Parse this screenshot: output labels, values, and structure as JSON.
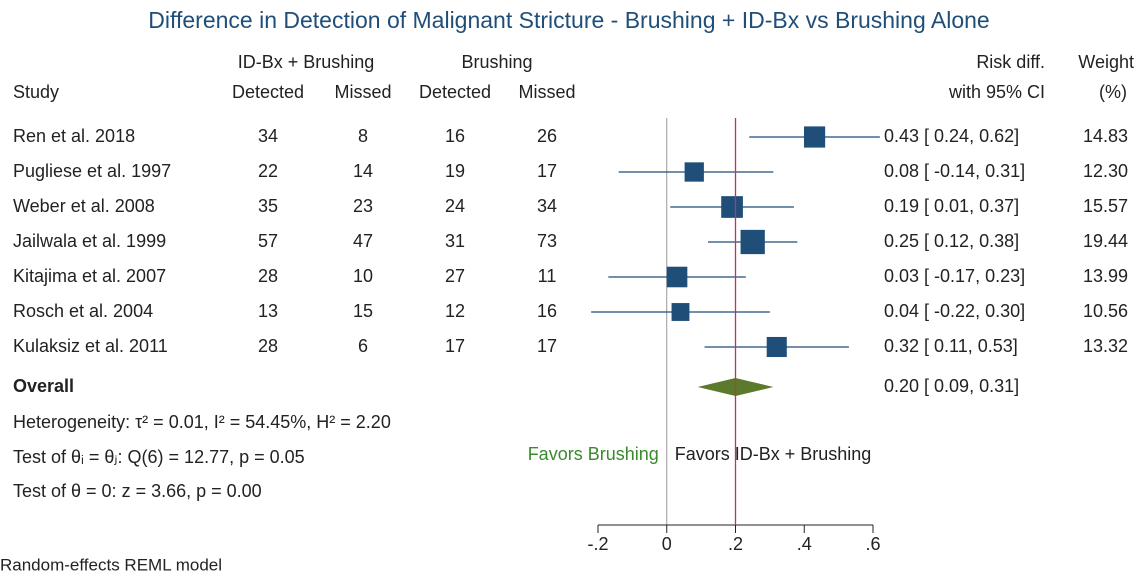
{
  "chart_data": {
    "type": "forest",
    "title": "Difference in Detection of Malignant Stricture - Brushing + ID-Bx vs Brushing Alone",
    "group_headers": [
      "ID-Bx + Brushing",
      "Brushing"
    ],
    "column_headers": [
      "Study",
      "Detected",
      "Missed",
      "Detected",
      "Missed"
    ],
    "effect_header": [
      "Risk diff.",
      "with 95% CI"
    ],
    "weight_header": [
      "Weight",
      "(%)"
    ],
    "studies": [
      "Ren et al. 2018",
      "Pugliese et al. 1997",
      "Weber et al. 2008",
      "Jailwala et al. 1999",
      "Kitajima et al. 2007",
      "Rosch et al. 2004",
      "Kulaksiz et al. 2011"
    ],
    "idbx_detected": [
      34,
      22,
      35,
      57,
      28,
      13,
      28
    ],
    "idbx_missed": [
      8,
      14,
      23,
      47,
      10,
      15,
      6
    ],
    "brushing_detected": [
      16,
      19,
      24,
      31,
      27,
      12,
      17
    ],
    "brushing_missed": [
      26,
      17,
      34,
      73,
      11,
      16,
      17
    ],
    "effect": [
      0.43,
      0.08,
      0.19,
      0.25,
      0.03,
      0.04,
      0.32
    ],
    "ci_low": [
      0.24,
      -0.14,
      0.01,
      0.12,
      -0.17,
      -0.22,
      0.11
    ],
    "ci_high": [
      0.62,
      0.31,
      0.37,
      0.38,
      0.23,
      0.3,
      0.53
    ],
    "ci_labels": [
      "0.43 [ 0.24, 0.62]",
      "0.08 [ -0.14, 0.31]",
      "0.19 [ 0.01, 0.37]",
      "0.25 [ 0.12, 0.38]",
      "0.03 [ -0.17, 0.23]",
      "0.04 [ -0.22, 0.30]",
      "0.32 [ 0.11, 0.53]"
    ],
    "weights": [
      14.83,
      12.3,
      15.57,
      19.44,
      13.99,
      10.56,
      13.32
    ],
    "weight_labels": [
      "14.83",
      "12.30",
      "15.57",
      "19.44",
      "13.99",
      "10.56",
      "13.32"
    ],
    "overall": {
      "label": "Overall",
      "effect": 0.2,
      "ci_low": 0.09,
      "ci_high": 0.31,
      "ci_label": "0.20 [ 0.09, 0.31]"
    },
    "heterogeneity": "Heterogeneity: τ² = 0.01, I² = 54.45%, H² = 2.20",
    "test_homogeneity": "Test of θᵢ = θⱼ: Q(6) = 12.77, p = 0.05",
    "test_effect": "Test of θ = 0: z = 3.66, p = 0.00",
    "favors_left": "Favors Brushing",
    "favors_right": "Favors ID-Bx + Brushing",
    "footnote": "Random-effects REML model",
    "xlim": [
      -0.2,
      0.6
    ],
    "xticks": [
      {
        "value": -0.2,
        "label": "-.2"
      },
      0,
      {
        "value": 0.2,
        "label": ".2"
      },
      {
        "value": 0.4,
        "label": ".4"
      },
      {
        "value": 0.6,
        "label": ".6"
      }
    ],
    "marker_color": "#1f4e79",
    "diamond_color": "#5b7a2c",
    "reference_color": "#c0306a"
  }
}
